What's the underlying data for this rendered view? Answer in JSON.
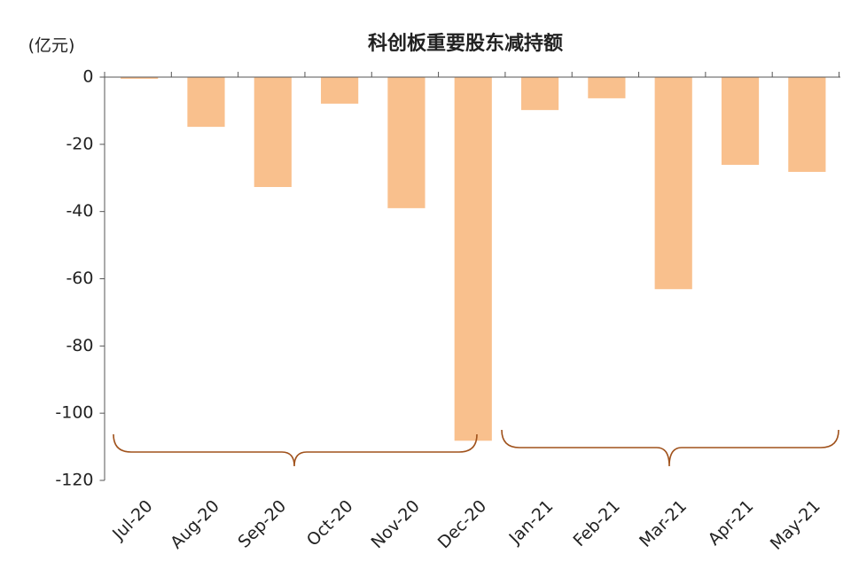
{
  "chart_data": {
    "type": "bar",
    "title": "科创板重要股东减持额",
    "unit_label": "(亿元)",
    "categories": [
      "Jul-20",
      "Aug-20",
      "Sep-20",
      "Oct-20",
      "Nov-20",
      "Dec-20",
      "Jan-21",
      "Feb-21",
      "Mar-21",
      "Apr-21",
      "May-21"
    ],
    "values": [
      -0.5,
      -14.8,
      -32.7,
      -7.9,
      -39,
      -108.2,
      -9.8,
      -6.3,
      -63.1,
      -26.1,
      -28.2
    ],
    "color": "#f9c08d",
    "ylim": [
      -120,
      0
    ],
    "yticks": [
      0,
      -20,
      -40,
      -60,
      -80,
      -100,
      -120
    ],
    "grid": false
  }
}
